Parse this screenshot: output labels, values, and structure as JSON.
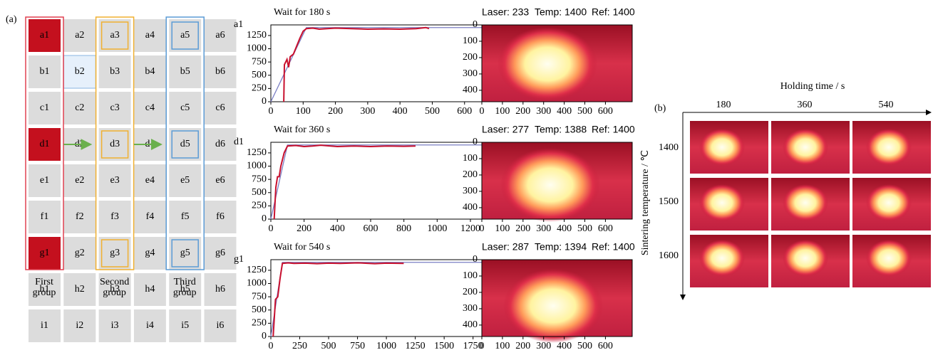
{
  "panel_a_label": "(a)",
  "grid": {
    "rows": [
      [
        "a1",
        "a2",
        "a3",
        "a4",
        "a5",
        "a6"
      ],
      [
        "b1",
        "b2",
        "b3",
        "b4",
        "b5",
        "b6"
      ],
      [
        "c1",
        "c2",
        "c3",
        "c4",
        "c5",
        "c6"
      ],
      [
        "d1",
        "d2",
        "d3",
        "d4",
        "d5",
        "d6"
      ],
      [
        "e1",
        "e2",
        "e3",
        "e4",
        "e5",
        "e6"
      ],
      [
        "f1",
        "f2",
        "f3",
        "f4",
        "f5",
        "f6"
      ],
      [
        "g1",
        "g2",
        "g3",
        "g4",
        "g5",
        "g6"
      ],
      [
        "h1",
        "h2",
        "h3",
        "h4",
        "h5",
        "h6"
      ],
      [
        "i1",
        "i2",
        "i3",
        "i4",
        "i5",
        "i6"
      ]
    ],
    "groups": [
      "First group",
      "Second group",
      "Third group"
    ]
  },
  "plots": [
    {
      "type": "line",
      "label": "a1",
      "title": "Wait for 180 s",
      "xlim": [
        0,
        680
      ],
      "xticks": [
        0,
        100,
        200,
        300,
        400,
        500,
        600
      ],
      "ylim": [
        0,
        1450
      ],
      "yticks": [
        0,
        250,
        500,
        750,
        1000,
        1250
      ],
      "series": [
        {
          "color": "#7b7fc4",
          "x": [
            0,
            110,
            680
          ],
          "values": [
            0,
            1400,
            1400
          ]
        },
        {
          "color": "#c8102e",
          "x": [
            40,
            42,
            50,
            55,
            60,
            70,
            80,
            90,
            100,
            110,
            130,
            150,
            200,
            250,
            300,
            350,
            400,
            450,
            480,
            490
          ],
          "values": [
            0,
            700,
            800,
            650,
            850,
            900,
            1050,
            1200,
            1330,
            1380,
            1390,
            1370,
            1390,
            1380,
            1370,
            1375,
            1370,
            1380,
            1400,
            1380
          ]
        }
      ],
      "image": {
        "header": [
          "Laser: 233",
          "Temp: 1400",
          "Ref: 1400"
        ],
        "xlim": [
          0,
          730
        ],
        "xticks": [
          0,
          100,
          200,
          300,
          400,
          500,
          600
        ],
        "ylim": [
          0,
          470
        ],
        "yticks": [
          0,
          100,
          200,
          300,
          400
        ]
      }
    },
    {
      "type": "line",
      "label": "d1",
      "title": "Wait for 360 s",
      "xlim": [
        0,
        1320
      ],
      "xticks": [
        0,
        200,
        400,
        600,
        800,
        1000,
        1200
      ],
      "ylim": [
        0,
        1450
      ],
      "yticks": [
        0,
        250,
        500,
        750,
        1000,
        1250
      ],
      "series": [
        {
          "color": "#7b7fc4",
          "x": [
            0,
            100,
            1320
          ],
          "values": [
            0,
            1400,
            1400
          ]
        },
        {
          "color": "#c8102e",
          "x": [
            20,
            30,
            40,
            50,
            60,
            80,
            100,
            150,
            200,
            250,
            300,
            400,
            500,
            600,
            700,
            800,
            870
          ],
          "values": [
            0,
            600,
            800,
            800,
            1000,
            1250,
            1380,
            1390,
            1370,
            1380,
            1395,
            1370,
            1380,
            1370,
            1380,
            1375,
            1380
          ]
        }
      ],
      "image": {
        "header": [
          "Laser: 277",
          "Temp: 1388",
          "Ref: 1400"
        ],
        "xlim": [
          0,
          730
        ],
        "xticks": [
          0,
          100,
          200,
          300,
          400,
          500,
          600
        ],
        "ylim": [
          0,
          470
        ],
        "yticks": [
          0,
          100,
          200,
          300,
          400
        ]
      }
    },
    {
      "type": "line",
      "label": "g1",
      "title": "Wait for 540 s",
      "xlim": [
        0,
        1900
      ],
      "xticks": [
        0,
        250,
        500,
        750,
        1000,
        1250,
        1500,
        1750
      ],
      "ylim": [
        0,
        1450
      ],
      "yticks": [
        0,
        250,
        500,
        750,
        1000,
        1250
      ],
      "series": [
        {
          "color": "#7b7fc4",
          "x": [
            0,
            100,
            1900
          ],
          "values": [
            0,
            1400,
            1400
          ]
        },
        {
          "color": "#c8102e",
          "x": [
            20,
            40,
            60,
            80,
            100,
            150,
            200,
            300,
            400,
            500,
            600,
            750,
            900,
            1000,
            1150
          ],
          "values": [
            0,
            700,
            750,
            1100,
            1380,
            1390,
            1380,
            1385,
            1375,
            1385,
            1380,
            1390,
            1375,
            1385,
            1380
          ]
        }
      ],
      "image": {
        "header": [
          "Laser: 287",
          "Temp: 1394",
          "Ref: 1400"
        ],
        "xlim": [
          0,
          730
        ],
        "xticks": [
          0,
          100,
          200,
          300,
          400,
          500,
          600
        ],
        "ylim": [
          0,
          470
        ],
        "yticks": [
          0,
          100,
          200,
          300,
          400
        ]
      }
    }
  ],
  "panel_b": {
    "label": "(b)",
    "x_title": "Holding time / s",
    "columns": [
      "180",
      "360",
      "540"
    ],
    "y_title": "Sintering temperature / ℃",
    "rows": [
      "1400",
      "1500",
      "1600"
    ]
  }
}
